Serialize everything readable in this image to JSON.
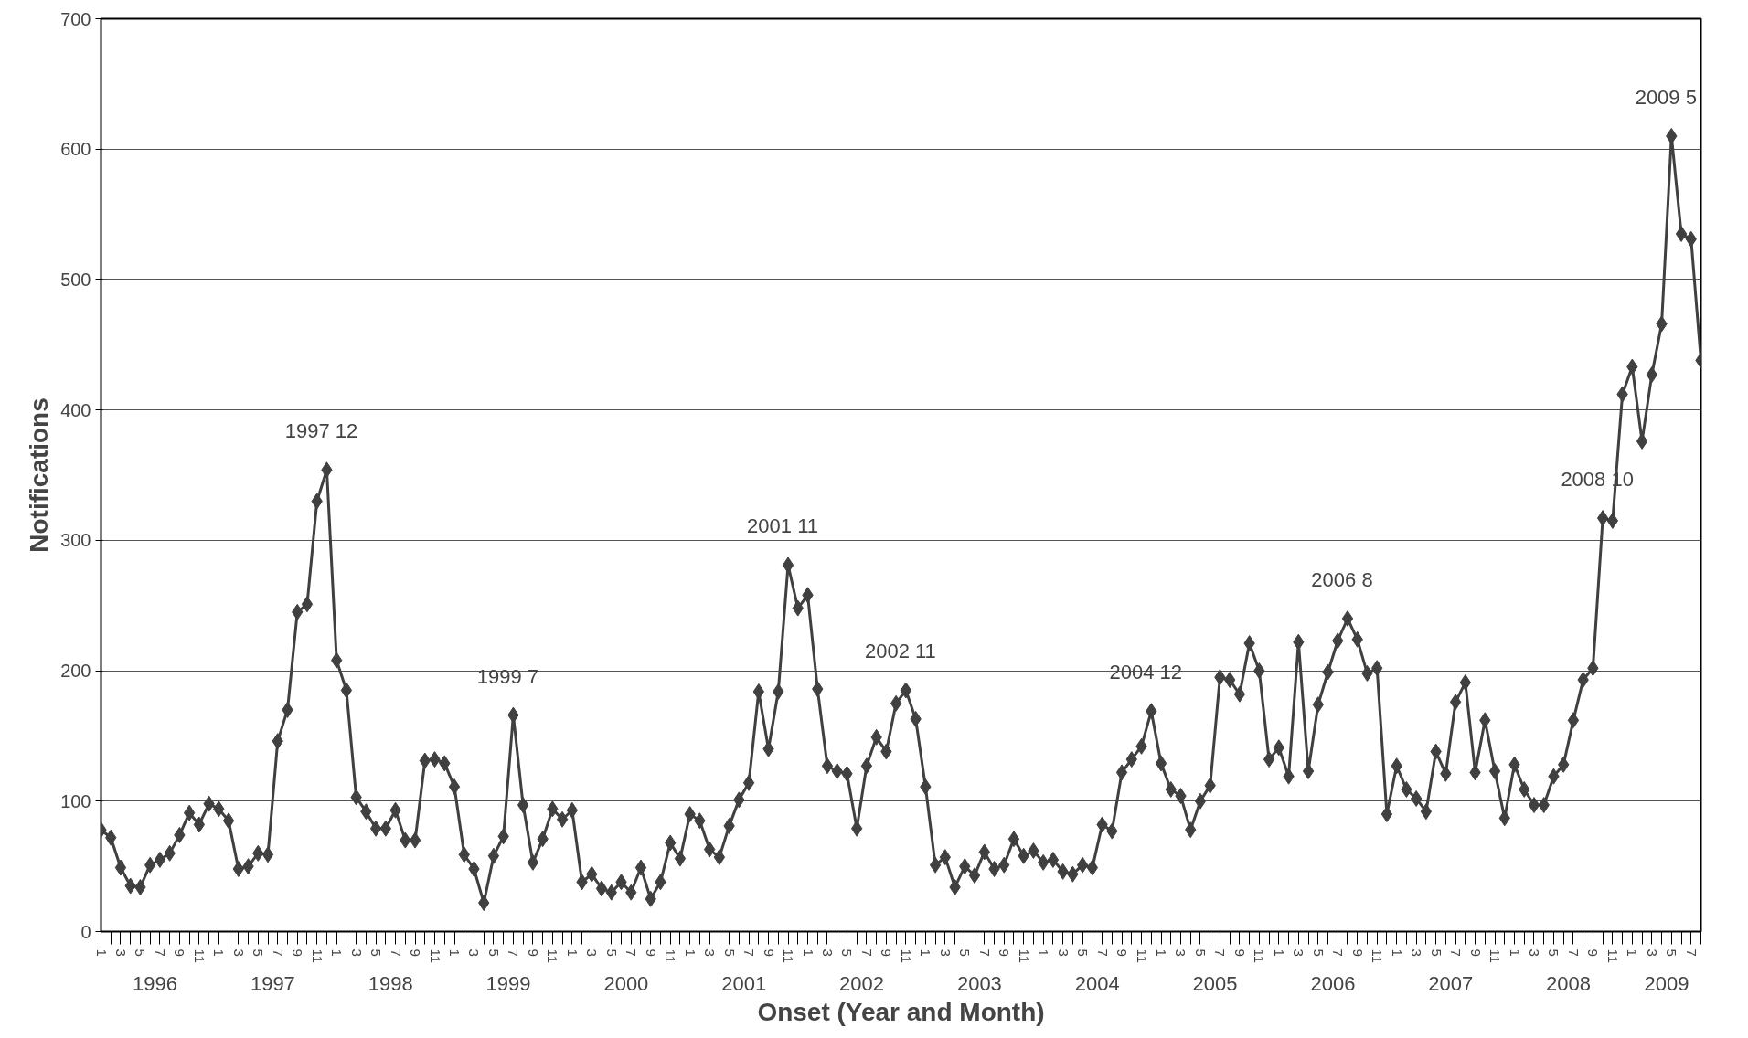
{
  "chart_data": {
    "type": "line",
    "xlabel": "Onset (Year and Month)",
    "ylabel": "Notifications",
    "x": [
      "1996-01",
      "1996-02",
      "1996-03",
      "1996-04",
      "1996-05",
      "1996-06",
      "1996-07",
      "1996-08",
      "1996-09",
      "1996-10",
      "1996-11",
      "1996-12",
      "1997-01",
      "1997-02",
      "1997-03",
      "1997-04",
      "1997-05",
      "1997-06",
      "1997-07",
      "1997-08",
      "1997-09",
      "1997-10",
      "1997-11",
      "1997-12",
      "1998-01",
      "1998-02",
      "1998-03",
      "1998-04",
      "1998-05",
      "1998-06",
      "1998-07",
      "1998-08",
      "1998-09",
      "1998-10",
      "1998-11",
      "1998-12",
      "1999-01",
      "1999-02",
      "1999-03",
      "1999-04",
      "1999-05",
      "1999-06",
      "1999-07",
      "1999-08",
      "1999-09",
      "1999-10",
      "1999-11",
      "1999-12",
      "2000-01",
      "2000-02",
      "2000-03",
      "2000-04",
      "2000-05",
      "2000-06",
      "2000-07",
      "2000-08",
      "2000-09",
      "2000-10",
      "2000-11",
      "2000-12",
      "2001-01",
      "2001-02",
      "2001-03",
      "2001-04",
      "2001-05",
      "2001-06",
      "2001-07",
      "2001-08",
      "2001-09",
      "2001-10",
      "2001-11",
      "2001-12",
      "2002-01",
      "2002-02",
      "2002-03",
      "2002-04",
      "2002-05",
      "2002-06",
      "2002-07",
      "2002-08",
      "2002-09",
      "2002-10",
      "2002-11",
      "2002-12",
      "2003-01",
      "2003-02",
      "2003-03",
      "2003-04",
      "2003-05",
      "2003-06",
      "2003-07",
      "2003-08",
      "2003-09",
      "2003-10",
      "2003-11",
      "2003-12",
      "2004-01",
      "2004-02",
      "2004-03",
      "2004-04",
      "2004-05",
      "2004-06",
      "2004-07",
      "2004-08",
      "2004-09",
      "2004-10",
      "2004-11",
      "2004-12",
      "2005-01",
      "2005-02",
      "2005-03",
      "2005-04",
      "2005-05",
      "2005-06",
      "2005-07",
      "2005-08",
      "2005-09",
      "2005-10",
      "2005-11",
      "2005-12",
      "2006-01",
      "2006-02",
      "2006-03",
      "2006-04",
      "2006-05",
      "2006-06",
      "2006-07",
      "2006-08",
      "2006-09",
      "2006-10",
      "2006-11",
      "2006-12",
      "2007-01",
      "2007-02",
      "2007-03",
      "2007-04",
      "2007-05",
      "2007-06",
      "2007-07",
      "2007-08",
      "2007-09",
      "2007-10",
      "2007-11",
      "2007-12",
      "2008-01",
      "2008-02",
      "2008-03",
      "2008-04",
      "2008-05",
      "2008-06",
      "2008-07",
      "2008-08",
      "2008-09",
      "2008-10",
      "2008-11",
      "2008-12",
      "2009-01",
      "2009-02",
      "2009-03",
      "2009-04",
      "2009-05",
      "2009-06",
      "2009-07",
      "2009-08"
    ],
    "series": [
      {
        "color": "#404040",
        "values": [
          78,
          72,
          49,
          35,
          34,
          51,
          55,
          60,
          74,
          91,
          82,
          98,
          94,
          85,
          48,
          50,
          60,
          59,
          146,
          170,
          245,
          251,
          330,
          354,
          208,
          185,
          103,
          92,
          79,
          79,
          93,
          70,
          70,
          131,
          132,
          129,
          111,
          59,
          48,
          22,
          58,
          73,
          166,
          97,
          53,
          71,
          94,
          86,
          93,
          38,
          44,
          33,
          30,
          38,
          30,
          49,
          25,
          38,
          68,
          56,
          90,
          85,
          63,
          57,
          81,
          101,
          114,
          184,
          140,
          184,
          281,
          248,
          258,
          186,
          127,
          123,
          121,
          79,
          127,
          149,
          138,
          175,
          185,
          163,
          111,
          51,
          57,
          34,
          50,
          43,
          61,
          48,
          51,
          71,
          58,
          62,
          53,
          55,
          46,
          44,
          51,
          49,
          82,
          77,
          122,
          132,
          142,
          169,
          129,
          109,
          104,
          78,
          100,
          112,
          195,
          193,
          182,
          221,
          200,
          132,
          141,
          119,
          222,
          123,
          174,
          199,
          223,
          240,
          224,
          198,
          202,
          90,
          127,
          109,
          102,
          92,
          138,
          121,
          176,
          191,
          122,
          162,
          123,
          87,
          128,
          109,
          97,
          97,
          119,
          128,
          162,
          193,
          202,
          317,
          315,
          412,
          433,
          376,
          427,
          466,
          610,
          535,
          531,
          438
        ]
      }
    ],
    "xlim": [
      "1996-01",
      "2009-08"
    ],
    "xticks": [
      {
        "value": "1996-01",
        "label": "1"
      },
      {
        "value": "1996-02",
        "label": null
      },
      {
        "value": "1996-03",
        "label": "3"
      },
      {
        "value": "1996-04",
        "label": null
      },
      {
        "value": "1996-05",
        "label": "5"
      },
      {
        "value": "1996-06",
        "label": null
      },
      {
        "value": "1996-07",
        "label": "7"
      },
      {
        "value": "1996-08",
        "label": null
      },
      {
        "value": "1996-09",
        "label": "9"
      },
      {
        "value": "1996-10",
        "label": null
      },
      {
        "value": "1996-11",
        "label": "11"
      },
      {
        "value": "1996-12",
        "label": null
      },
      {
        "value": "1997-01",
        "label": "1"
      },
      {
        "value": "1997-02",
        "label": null
      },
      {
        "value": "1997-03",
        "label": "3"
      },
      {
        "value": "1997-04",
        "label": null
      },
      {
        "value": "1997-05",
        "label": "5"
      },
      {
        "value": "1997-06",
        "label": null
      },
      {
        "value": "1997-07",
        "label": "7"
      },
      {
        "value": "1997-08",
        "label": null
      },
      {
        "value": "1997-09",
        "label": "9"
      },
      {
        "value": "1997-10",
        "label": null
      },
      {
        "value": "1997-11",
        "label": "11"
      },
      {
        "value": "1997-12",
        "label": null
      },
      {
        "value": "1998-01",
        "label": "1"
      },
      {
        "value": "1998-02",
        "label": null
      },
      {
        "value": "1998-03",
        "label": "3"
      },
      {
        "value": "1998-04",
        "label": null
      },
      {
        "value": "1998-05",
        "label": "5"
      },
      {
        "value": "1998-06",
        "label": null
      },
      {
        "value": "1998-07",
        "label": "7"
      },
      {
        "value": "1998-08",
        "label": null
      },
      {
        "value": "1998-09",
        "label": "9"
      },
      {
        "value": "1998-10",
        "label": null
      },
      {
        "value": "1998-11",
        "label": "11"
      },
      {
        "value": "1998-12",
        "label": null
      },
      {
        "value": "1999-01",
        "label": "1"
      },
      {
        "value": "1999-02",
        "label": null
      },
      {
        "value": "1999-03",
        "label": "3"
      },
      {
        "value": "1999-04",
        "label": null
      },
      {
        "value": "1999-05",
        "label": "5"
      },
      {
        "value": "1999-06",
        "label": null
      },
      {
        "value": "1999-07",
        "label": "7"
      },
      {
        "value": "1999-08",
        "label": null
      },
      {
        "value": "1999-09",
        "label": "9"
      },
      {
        "value": "1999-10",
        "label": null
      },
      {
        "value": "1999-11",
        "label": "11"
      },
      {
        "value": "1999-12",
        "label": null
      },
      {
        "value": "2000-01",
        "label": "1"
      },
      {
        "value": "2000-02",
        "label": null
      },
      {
        "value": "2000-03",
        "label": "3"
      },
      {
        "value": "2000-04",
        "label": null
      },
      {
        "value": "2000-05",
        "label": "5"
      },
      {
        "value": "2000-06",
        "label": null
      },
      {
        "value": "2000-07",
        "label": "7"
      },
      {
        "value": "2000-08",
        "label": null
      },
      {
        "value": "2000-09",
        "label": "9"
      },
      {
        "value": "2000-10",
        "label": null
      },
      {
        "value": "2000-11",
        "label": "11"
      },
      {
        "value": "2000-12",
        "label": null
      },
      {
        "value": "2001-01",
        "label": "1"
      },
      {
        "value": "2001-02",
        "label": null
      },
      {
        "value": "2001-03",
        "label": "3"
      },
      {
        "value": "2001-04",
        "label": null
      },
      {
        "value": "2001-05",
        "label": "5"
      },
      {
        "value": "2001-06",
        "label": null
      },
      {
        "value": "2001-07",
        "label": "7"
      },
      {
        "value": "2001-08",
        "label": null
      },
      {
        "value": "2001-09",
        "label": "9"
      },
      {
        "value": "2001-10",
        "label": null
      },
      {
        "value": "2001-11",
        "label": "11"
      },
      {
        "value": "2001-12",
        "label": null
      },
      {
        "value": "2002-01",
        "label": "1"
      },
      {
        "value": "2002-02",
        "label": null
      },
      {
        "value": "2002-03",
        "label": "3"
      },
      {
        "value": "2002-04",
        "label": null
      },
      {
        "value": "2002-05",
        "label": "5"
      },
      {
        "value": "2002-06",
        "label": null
      },
      {
        "value": "2002-07",
        "label": "7"
      },
      {
        "value": "2002-08",
        "label": null
      },
      {
        "value": "2002-09",
        "label": "9"
      },
      {
        "value": "2002-10",
        "label": null
      },
      {
        "value": "2002-11",
        "label": "11"
      },
      {
        "value": "2002-12",
        "label": null
      },
      {
        "value": "2003-01",
        "label": "1"
      },
      {
        "value": "2003-02",
        "label": null
      },
      {
        "value": "2003-03",
        "label": "3"
      },
      {
        "value": "2003-04",
        "label": null
      },
      {
        "value": "2003-05",
        "label": "5"
      },
      {
        "value": "2003-06",
        "label": null
      },
      {
        "value": "2003-07",
        "label": "7"
      },
      {
        "value": "2003-08",
        "label": null
      },
      {
        "value": "2003-09",
        "label": "9"
      },
      {
        "value": "2003-10",
        "label": null
      },
      {
        "value": "2003-11",
        "label": "11"
      },
      {
        "value": "2003-12",
        "label": null
      },
      {
        "value": "2004-01",
        "label": "1"
      },
      {
        "value": "2004-02",
        "label": null
      },
      {
        "value": "2004-03",
        "label": "3"
      },
      {
        "value": "2004-04",
        "label": null
      },
      {
        "value": "2004-05",
        "label": "5"
      },
      {
        "value": "2004-06",
        "label": null
      },
      {
        "value": "2004-07",
        "label": "7"
      },
      {
        "value": "2004-08",
        "label": null
      },
      {
        "value": "2004-09",
        "label": "9"
      },
      {
        "value": "2004-10",
        "label": null
      },
      {
        "value": "2004-11",
        "label": "11"
      },
      {
        "value": "2004-12",
        "label": null
      },
      {
        "value": "2005-01",
        "label": "1"
      },
      {
        "value": "2005-02",
        "label": null
      },
      {
        "value": "2005-03",
        "label": "3"
      },
      {
        "value": "2005-04",
        "label": null
      },
      {
        "value": "2005-05",
        "label": "5"
      },
      {
        "value": "2005-06",
        "label": null
      },
      {
        "value": "2005-07",
        "label": "7"
      },
      {
        "value": "2005-08",
        "label": null
      },
      {
        "value": "2005-09",
        "label": "9"
      },
      {
        "value": "2005-10",
        "label": null
      },
      {
        "value": "2005-11",
        "label": "11"
      },
      {
        "value": "2005-12",
        "label": null
      },
      {
        "value": "2006-01",
        "label": "1"
      },
      {
        "value": "2006-02",
        "label": null
      },
      {
        "value": "2006-03",
        "label": "3"
      },
      {
        "value": "2006-04",
        "label": null
      },
      {
        "value": "2006-05",
        "label": "5"
      },
      {
        "value": "2006-06",
        "label": null
      },
      {
        "value": "2006-07",
        "label": "7"
      },
      {
        "value": "2006-08",
        "label": null
      },
      {
        "value": "2006-09",
        "label": "9"
      },
      {
        "value": "2006-10",
        "label": null
      },
      {
        "value": "2006-11",
        "label": "11"
      },
      {
        "value": "2006-12",
        "label": null
      },
      {
        "value": "2007-01",
        "label": "1"
      },
      {
        "value": "2007-02",
        "label": null
      },
      {
        "value": "2007-03",
        "label": "3"
      },
      {
        "value": "2007-04",
        "label": null
      },
      {
        "value": "2007-05",
        "label": "5"
      },
      {
        "value": "2007-06",
        "label": null
      },
      {
        "value": "2007-07",
        "label": "7"
      },
      {
        "value": "2007-08",
        "label": null
      },
      {
        "value": "2007-09",
        "label": "9"
      },
      {
        "value": "2007-10",
        "label": null
      },
      {
        "value": "2007-11",
        "label": "11"
      },
      {
        "value": "2007-12",
        "label": null
      },
      {
        "value": "2008-01",
        "label": "1"
      },
      {
        "value": "2008-02",
        "label": null
      },
      {
        "value": "2008-03",
        "label": "3"
      },
      {
        "value": "2008-04",
        "label": null
      },
      {
        "value": "2008-05",
        "label": "5"
      },
      {
        "value": "2008-06",
        "label": null
      },
      {
        "value": "2008-07",
        "label": "7"
      },
      {
        "value": "2008-08",
        "label": null
      },
      {
        "value": "2008-09",
        "label": "9"
      },
      {
        "value": "2008-10",
        "label": null
      },
      {
        "value": "2008-11",
        "label": "11"
      },
      {
        "value": "2008-12",
        "label": null
      },
      {
        "value": "2009-01",
        "label": "1"
      },
      {
        "value": "2009-02",
        "label": null
      },
      {
        "value": "2009-03",
        "label": "3"
      },
      {
        "value": "2009-04",
        "label": null
      },
      {
        "value": "2009-05",
        "label": "5"
      },
      {
        "value": "2009-06",
        "label": null
      },
      {
        "value": "2009-07",
        "label": "7"
      },
      {
        "value": "2009-08",
        "label": null
      }
    ],
    "ylim": [
      0,
      700
    ],
    "yticks": [
      0,
      100,
      200,
      300,
      400,
      500,
      600,
      700
    ],
    "grid": "y",
    "marker": "diamond",
    "line_style": "solid",
    "annotations": [
      {
        "text": "1997 12",
        "x": "1997-12",
        "y": 354
      },
      {
        "text": "1999 7",
        "x": "1999-07",
        "y": 166
      },
      {
        "text": "2001 11",
        "x": "2001-11",
        "y": 281
      },
      {
        "text": "2002 11",
        "x": "2002-11",
        "y": 185
      },
      {
        "text": "2004 12",
        "x": "2004-12",
        "y": 169
      },
      {
        "text": "2006 8",
        "x": "2006-08",
        "y": 240
      },
      {
        "text": "2008 10",
        "x": "2008-10",
        "y": 317
      },
      {
        "text": "2009 5",
        "x": "2009-05",
        "y": 610
      },
      "1996",
      "1997",
      "1998",
      "1999",
      "2000",
      "2001",
      "2002",
      "2003",
      "2004",
      "2005",
      "2006",
      "2007",
      "2008",
      "2009"
    ]
  }
}
